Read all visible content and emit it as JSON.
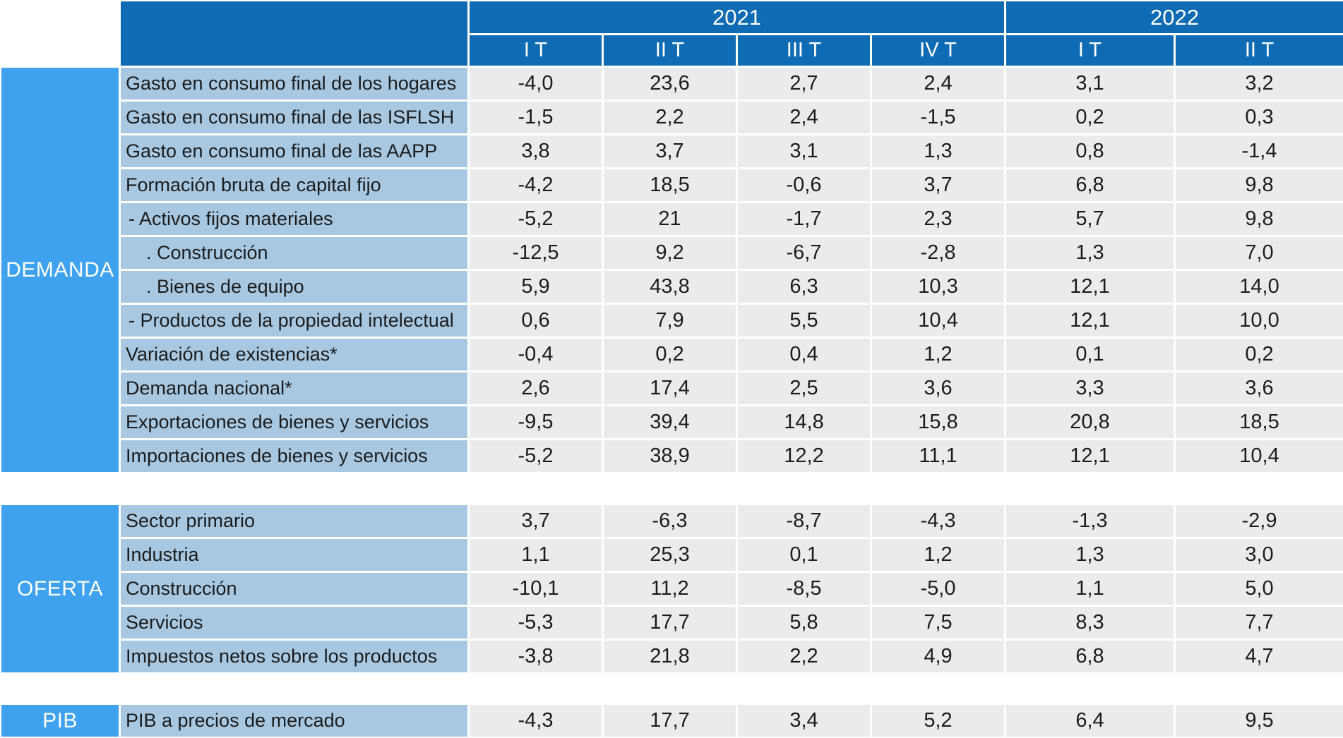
{
  "colors": {
    "header_blue": "#0F6CB4",
    "section_blue": "#3FA2EE",
    "row_label_blue": "#A8C8E1",
    "data_cell_gray": "#EBEBEB",
    "header_text": "#FFFFFF",
    "data_text": "#1C1C1C"
  },
  "table": {
    "col_groups": [
      {
        "label": "2021",
        "span": 4
      },
      {
        "label": "2022",
        "span": 2
      }
    ],
    "quarter_headers": [
      "I T",
      "II T",
      "III T",
      "IV T",
      "I T",
      "II T"
    ],
    "sections": [
      {
        "name": "DEMANDA",
        "rows": [
          {
            "label": "Gasto en consumo final de los hogares",
            "indent": 0,
            "values": [
              "-4,0",
              "23,6",
              "2,7",
              "2,4",
              "3,1",
              "3,2"
            ]
          },
          {
            "label": "Gasto en consumo final de las ISFLSH",
            "indent": 0,
            "values": [
              "-1,5",
              "2,2",
              "2,4",
              "-1,5",
              "0,2",
              "0,3"
            ]
          },
          {
            "label": "Gasto en consumo final de las AAPP",
            "indent": 0,
            "values": [
              "3,8",
              "3,7",
              "3,1",
              "1,3",
              "0,8",
              "-1,4"
            ]
          },
          {
            "label": "Formación  bruta de capital fijo",
            "indent": 0,
            "values": [
              "-4,2",
              "18,5",
              "-0,6",
              "3,7",
              "6,8",
              "9,8"
            ]
          },
          {
            "label": "- Activos fijos materiales",
            "indent": 1,
            "values": [
              "-5,2",
              "21",
              "-1,7",
              "2,3",
              "5,7",
              "9,8"
            ]
          },
          {
            "label": ". Construcción",
            "indent": 2,
            "values": [
              "-12,5",
              "9,2",
              "-6,7",
              "-2,8",
              "1,3",
              "7,0"
            ]
          },
          {
            "label": ". Bienes de equipo",
            "indent": 2,
            "values": [
              "5,9",
              "43,8",
              "6,3",
              "10,3",
              "12,1",
              "14,0"
            ]
          },
          {
            "label": "- Productos de la propiedad intelectual",
            "indent": 1,
            "values": [
              "0,6",
              "7,9",
              "5,5",
              "10,4",
              "12,1",
              "10,0"
            ]
          },
          {
            "label": "Variación de existencias*",
            "indent": 0,
            "values": [
              "-0,4",
              "0,2",
              "0,4",
              "1,2",
              "0,1",
              "0,2"
            ]
          },
          {
            "label": "Demanda nacional*",
            "indent": 0,
            "values": [
              "2,6",
              "17,4",
              "2,5",
              "3,6",
              "3,3",
              "3,6"
            ]
          },
          {
            "label": "Exportaciones de bienes y servicios",
            "indent": 0,
            "values": [
              "-9,5",
              "39,4",
              "14,8",
              "15,8",
              "20,8",
              "18,5"
            ]
          },
          {
            "label": "Importaciones de bienes y servicios",
            "indent": 0,
            "values": [
              "-5,2",
              "38,9",
              "12,2",
              "11,1",
              "12,1",
              "10,4"
            ]
          }
        ]
      },
      {
        "name": "OFERTA",
        "rows": [
          {
            "label": "Sector primario",
            "indent": 0,
            "values": [
              "3,7",
              "-6,3",
              "-8,7",
              "-4,3",
              "-1,3",
              "-2,9"
            ]
          },
          {
            "label": "Industria",
            "indent": 0,
            "values": [
              "1,1",
              "25,3",
              "0,1",
              "1,2",
              "1,3",
              "3,0"
            ]
          },
          {
            "label": "Construcción",
            "indent": 0,
            "values": [
              "-10,1",
              "11,2",
              "-8,5",
              "-5,0",
              "1,1",
              "5,0"
            ]
          },
          {
            "label": "Servicios",
            "indent": 0,
            "values": [
              "-5,3",
              "17,7",
              "5,8",
              "7,5",
              "8,3",
              "7,7"
            ]
          },
          {
            "label": "Impuestos netos sobre los productos",
            "indent": 0,
            "values": [
              "-3,8",
              "21,8",
              "2,2",
              "4,9",
              "6,8",
              "4,7"
            ]
          }
        ]
      },
      {
        "name": "PIB",
        "rows": [
          {
            "label": "PIB a precios de mercado",
            "indent": 0,
            "values": [
              "-4,3",
              "17,7",
              "3,4",
              "5,2",
              "6,4",
              "9,5"
            ]
          }
        ]
      }
    ]
  },
  "chart_data": {
    "type": "table",
    "columns": [
      "2021 I T",
      "2021 II T",
      "2021 III T",
      "2021 IV T",
      "2022 I T",
      "2022 II T"
    ],
    "rows": [
      {
        "section": "DEMANDA",
        "label": "Gasto en consumo final de los hogares",
        "values": [
          -4.0,
          23.6,
          2.7,
          2.4,
          3.1,
          3.2
        ]
      },
      {
        "section": "DEMANDA",
        "label": "Gasto en consumo final de las ISFLSH",
        "values": [
          -1.5,
          2.2,
          2.4,
          -1.5,
          0.2,
          0.3
        ]
      },
      {
        "section": "DEMANDA",
        "label": "Gasto en consumo final de las AAPP",
        "values": [
          3.8,
          3.7,
          3.1,
          1.3,
          0.8,
          -1.4
        ]
      },
      {
        "section": "DEMANDA",
        "label": "Formación bruta de capital fijo",
        "values": [
          -4.2,
          18.5,
          -0.6,
          3.7,
          6.8,
          9.8
        ]
      },
      {
        "section": "DEMANDA",
        "label": "Activos fijos materiales",
        "values": [
          -5.2,
          21,
          -1.7,
          2.3,
          5.7,
          9.8
        ]
      },
      {
        "section": "DEMANDA",
        "label": "Construcción",
        "values": [
          -12.5,
          9.2,
          -6.7,
          -2.8,
          1.3,
          7.0
        ]
      },
      {
        "section": "DEMANDA",
        "label": "Bienes de equipo",
        "values": [
          5.9,
          43.8,
          6.3,
          10.3,
          12.1,
          14.0
        ]
      },
      {
        "section": "DEMANDA",
        "label": "Productos de la propiedad intelectual",
        "values": [
          0.6,
          7.9,
          5.5,
          10.4,
          12.1,
          10.0
        ]
      },
      {
        "section": "DEMANDA",
        "label": "Variación de existencias*",
        "values": [
          -0.4,
          0.2,
          0.4,
          1.2,
          0.1,
          0.2
        ]
      },
      {
        "section": "DEMANDA",
        "label": "Demanda nacional*",
        "values": [
          2.6,
          17.4,
          2.5,
          3.6,
          3.3,
          3.6
        ]
      },
      {
        "section": "DEMANDA",
        "label": "Exportaciones de bienes y servicios",
        "values": [
          -9.5,
          39.4,
          14.8,
          15.8,
          20.8,
          18.5
        ]
      },
      {
        "section": "DEMANDA",
        "label": "Importaciones de bienes y servicios",
        "values": [
          -5.2,
          38.9,
          12.2,
          11.1,
          12.1,
          10.4
        ]
      },
      {
        "section": "OFERTA",
        "label": "Sector primario",
        "values": [
          3.7,
          -6.3,
          -8.7,
          -4.3,
          -1.3,
          -2.9
        ]
      },
      {
        "section": "OFERTA",
        "label": "Industria",
        "values": [
          1.1,
          25.3,
          0.1,
          1.2,
          1.3,
          3.0
        ]
      },
      {
        "section": "OFERTA",
        "label": "Construcción",
        "values": [
          -10.1,
          11.2,
          -8.5,
          -5.0,
          1.1,
          5.0
        ]
      },
      {
        "section": "OFERTA",
        "label": "Servicios",
        "values": [
          -5.3,
          17.7,
          5.8,
          7.5,
          8.3,
          7.7
        ]
      },
      {
        "section": "OFERTA",
        "label": "Impuestos netos sobre los productos",
        "values": [
          -3.8,
          21.8,
          2.2,
          4.9,
          6.8,
          4.7
        ]
      },
      {
        "section": "PIB",
        "label": "PIB a precios de mercado",
        "values": [
          -4.3,
          17.7,
          3.4,
          5.2,
          6.4,
          9.5
        ]
      }
    ]
  }
}
